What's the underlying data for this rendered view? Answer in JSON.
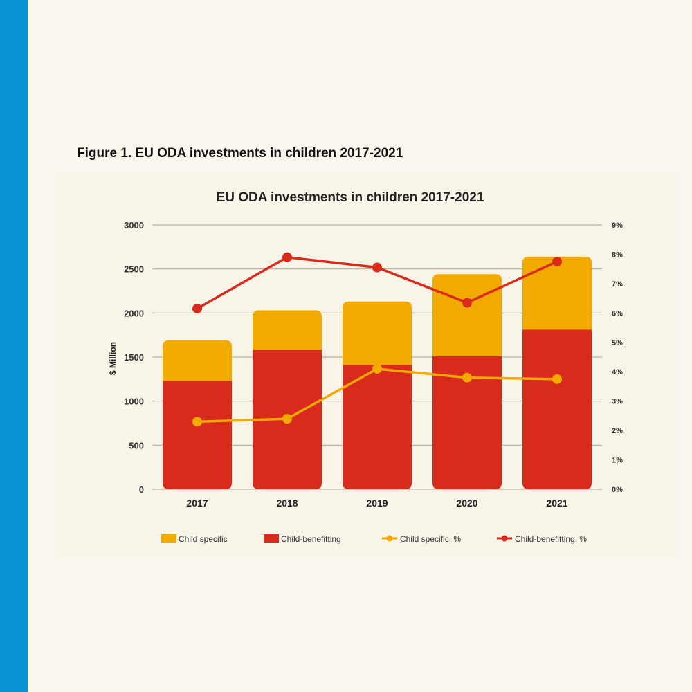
{
  "figure": {
    "caption": "Figure 1. EU ODA investments in children 2017-2021"
  },
  "colors": {
    "band": "#0a93d4",
    "child_specific": "#f2a900",
    "child_benefitting": "#d92b1c",
    "grid": "#b7b2a6"
  },
  "chart_data": {
    "type": "bar",
    "stacked": true,
    "title": "EU ODA investments in children 2017-2021",
    "xlabel": "",
    "ylabel": "$ Million",
    "ylim": [
      0,
      3000
    ],
    "y_ticks": [
      "0",
      "500",
      "1000",
      "1500",
      "2000",
      "2500",
      "3000"
    ],
    "y2lim": [
      0,
      9
    ],
    "y2_ticks": [
      "0%",
      "1%",
      "2%",
      "3%",
      "4%",
      "5%",
      "6%",
      "7%",
      "8%",
      "9%"
    ],
    "categories": [
      "2017",
      "2018",
      "2019",
      "2020",
      "2021"
    ],
    "series": [
      {
        "name": "Child-benefitting",
        "kind": "bar",
        "axis": "left",
        "values": [
          1230,
          1580,
          1410,
          1510,
          1810
        ]
      },
      {
        "name": "Child specific",
        "kind": "bar",
        "axis": "left",
        "values": [
          460,
          450,
          720,
          930,
          830
        ]
      },
      {
        "name": "Child specific, %",
        "kind": "line",
        "axis": "right",
        "values": [
          2.3,
          2.4,
          4.1,
          3.8,
          3.75
        ]
      },
      {
        "name": "Child-benefitting, %",
        "kind": "line",
        "axis": "right",
        "values": [
          6.15,
          7.9,
          7.55,
          6.35,
          7.75
        ]
      }
    ],
    "legend": [
      {
        "label": "Child specific",
        "type": "box",
        "color_key": "child_specific"
      },
      {
        "label": "Child-benefitting",
        "type": "box",
        "color_key": "child_benefitting"
      },
      {
        "label": "Child specific, %",
        "type": "line",
        "color_key": "child_specific"
      },
      {
        "label": "Child-benefitting, %",
        "type": "line",
        "color_key": "child_benefitting"
      }
    ],
    "legend_position": "bottom",
    "grid": true
  }
}
